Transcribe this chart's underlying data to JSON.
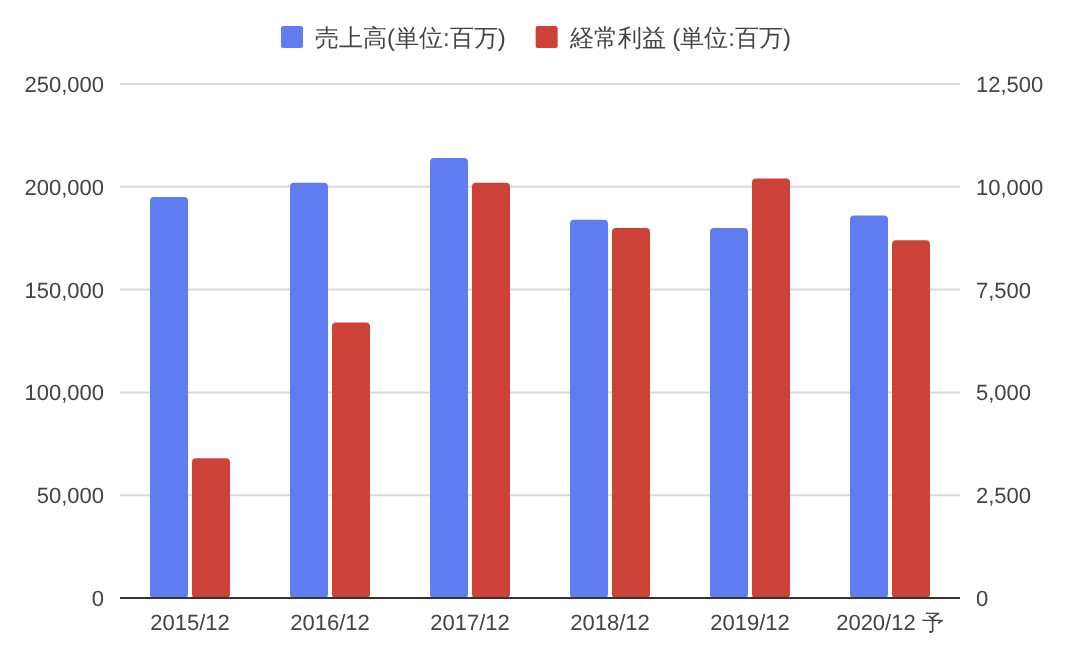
{
  "chart_data": {
    "type": "bar",
    "categories": [
      "2015/12",
      "2016/12",
      "2017/12",
      "2018/12",
      "2019/12",
      "2020/12 予"
    ],
    "series": [
      {
        "name": "売上高(単位:百万)",
        "color": "#5f7cf0",
        "values": [
          195000,
          202000,
          214000,
          184000,
          180000,
          186000
        ]
      },
      {
        "name": "経常利益 (単位:百万)",
        "color": "#cc4138",
        "axis": "y2",
        "values": [
          3400,
          6700,
          10100,
          9000,
          10200,
          8700
        ]
      }
    ],
    "ylim": [
      0,
      250000
    ],
    "yticks": [
      {
        "value": 0,
        "label": "0"
      },
      {
        "value": 50000,
        "label": "50,000"
      },
      {
        "value": 100000,
        "label": "100,000"
      },
      {
        "value": 150000,
        "label": "150,000"
      },
      {
        "value": 200000,
        "label": "200,000"
      },
      {
        "value": 250000,
        "label": "250,000"
      }
    ],
    "y2lim": [
      0,
      12500
    ],
    "y2ticks": [
      {
        "value": 0,
        "label": "0"
      },
      {
        "value": 2500,
        "label": "2,500"
      },
      {
        "value": 5000,
        "label": "5,000"
      },
      {
        "value": 7500,
        "label": "7,500"
      },
      {
        "value": 10000,
        "label": "10,000"
      },
      {
        "value": 12500,
        "label": "12,500"
      }
    ],
    "grid": "y",
    "legend": "top"
  }
}
